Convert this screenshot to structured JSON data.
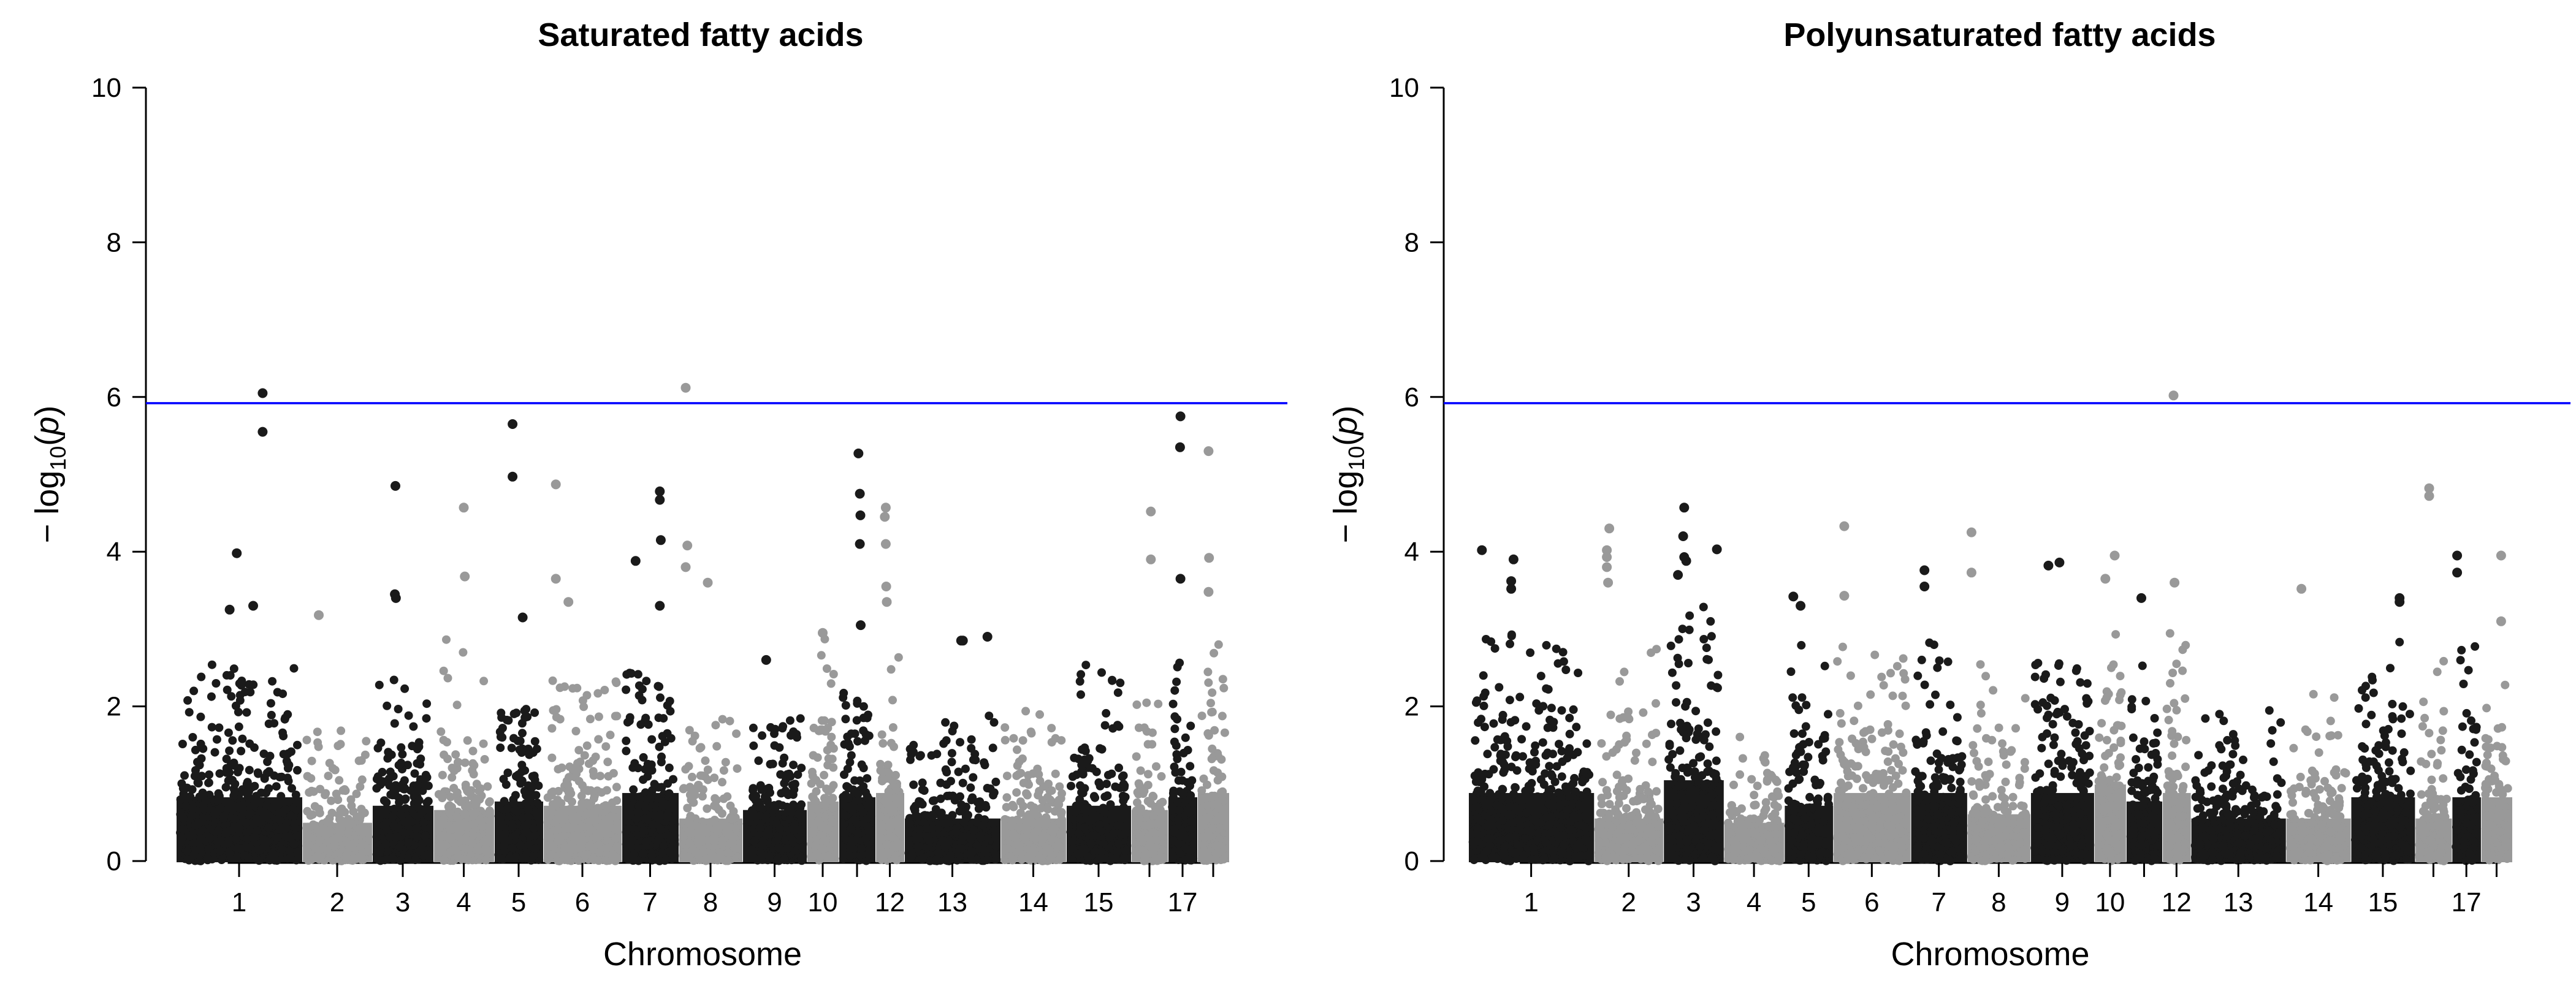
{
  "chart_data": [
    {
      "type": "scatter",
      "subtype": "manhattan",
      "title": "Saturated fatty acids",
      "xlabel": "Chromosome",
      "ylabel": "−log10(p)",
      "ylabel_parts": {
        "prefix": "− log",
        "subscript": "10",
        "open": "(",
        "var": "p",
        "close": ")"
      },
      "ylim": [
        0,
        10
      ],
      "yticks": [
        0,
        2,
        4,
        6,
        8,
        10
      ],
      "threshold": {
        "value": 5.92,
        "color": "#0000ff"
      },
      "colors": [
        "#1a1a1a",
        "#999999"
      ],
      "grid": false,
      "chromosomes": [
        {
          "chr": 1,
          "label": "1",
          "relative_length": 206,
          "bulk_max": 2.6,
          "dense_max": 1.5
        },
        {
          "chr": 2,
          "label": "2",
          "relative_length": 114,
          "bulk_max": 1.7,
          "dense_max": 0.9
        },
        {
          "chr": 3,
          "label": "3",
          "relative_length": 100,
          "bulk_max": 2.4,
          "dense_max": 1.3
        },
        {
          "chr": 4,
          "label": "4",
          "relative_length": 99,
          "bulk_max": 2.9,
          "dense_max": 1.2
        },
        {
          "chr": 5,
          "label": "5",
          "relative_length": 80,
          "bulk_max": 2.0,
          "dense_max": 1.4
        },
        {
          "chr": 6,
          "label": "6",
          "relative_length": 128,
          "bulk_max": 2.6,
          "dense_max": 1.3
        },
        {
          "chr": 7,
          "label": "7",
          "relative_length": 93,
          "bulk_max": 2.5,
          "dense_max": 1.6
        },
        {
          "chr": 8,
          "label": "8",
          "relative_length": 104,
          "bulk_max": 2.2,
          "dense_max": 1.0
        },
        {
          "chr": 9,
          "label": "9",
          "relative_length": 105,
          "bulk_max": 1.9,
          "dense_max": 1.2
        },
        {
          "chr": 10,
          "label": "10",
          "relative_length": 52,
          "bulk_max": 2.9,
          "dense_max": 1.4
        },
        {
          "chr": 11,
          "label": "",
          "relative_length": 60,
          "bulk_max": 2.2,
          "dense_max": 1.5
        },
        {
          "chr": 12,
          "label": "12",
          "relative_length": 47,
          "bulk_max": 2.7,
          "dense_max": 1.6
        },
        {
          "chr": 13,
          "label": "13",
          "relative_length": 157,
          "bulk_max": 1.9,
          "dense_max": 1.0
        },
        {
          "chr": 14,
          "label": "14",
          "relative_length": 107,
          "bulk_max": 2.0,
          "dense_max": 1.0
        },
        {
          "chr": 15,
          "label": "15",
          "relative_length": 106,
          "bulk_max": 2.6,
          "dense_max": 1.3
        },
        {
          "chr": 16,
          "label": "",
          "relative_length": 60,
          "bulk_max": 2.7,
          "dense_max": 1.2
        },
        {
          "chr": 17,
          "label": "17",
          "relative_length": 48,
          "bulk_max": 2.6,
          "dense_max": 1.5
        },
        {
          "chr": 18,
          "label": "",
          "relative_length": 52,
          "bulk_max": 2.9,
          "dense_max": 1.6
        }
      ],
      "top_hits": [
        {
          "chr": 1,
          "pos": 0.7,
          "y": 6.05
        },
        {
          "chr": 1,
          "pos": 0.7,
          "y": 5.55
        },
        {
          "chr": 1,
          "pos": 0.48,
          "y": 3.98
        },
        {
          "chr": 1,
          "pos": 0.62,
          "y": 3.3
        },
        {
          "chr": 1,
          "pos": 0.42,
          "y": 3.25
        },
        {
          "chr": 2,
          "pos": 0.2,
          "y": 3.18
        },
        {
          "chr": 3,
          "pos": 0.36,
          "y": 4.85
        },
        {
          "chr": 3,
          "pos": 0.35,
          "y": 3.45
        },
        {
          "chr": 3,
          "pos": 0.37,
          "y": 3.4
        },
        {
          "chr": 4,
          "pos": 0.5,
          "y": 4.57
        },
        {
          "chr": 4,
          "pos": 0.52,
          "y": 3.68
        },
        {
          "chr": 5,
          "pos": 0.35,
          "y": 5.65
        },
        {
          "chr": 5,
          "pos": 0.35,
          "y": 4.97
        },
        {
          "chr": 5,
          "pos": 0.6,
          "y": 3.15
        },
        {
          "chr": 6,
          "pos": 0.12,
          "y": 4.87
        },
        {
          "chr": 6,
          "pos": 0.12,
          "y": 3.65
        },
        {
          "chr": 6,
          "pos": 0.3,
          "y": 3.35
        },
        {
          "chr": 7,
          "pos": 0.2,
          "y": 3.88
        },
        {
          "chr": 7,
          "pos": 0.7,
          "y": 4.78
        },
        {
          "chr": 7,
          "pos": 0.7,
          "y": 4.67
        },
        {
          "chr": 7,
          "pos": 0.72,
          "y": 4.15
        },
        {
          "chr": 7,
          "pos": 0.7,
          "y": 3.3
        },
        {
          "chr": 8,
          "pos": 0.05,
          "y": 6.12
        },
        {
          "chr": 8,
          "pos": 0.08,
          "y": 4.08
        },
        {
          "chr": 8,
          "pos": 0.05,
          "y": 3.8
        },
        {
          "chr": 8,
          "pos": 0.45,
          "y": 3.6
        },
        {
          "chr": 9,
          "pos": 0.35,
          "y": 2.6
        },
        {
          "chr": 10,
          "pos": 0.5,
          "y": 2.95
        },
        {
          "chr": 11,
          "pos": 0.55,
          "y": 5.27
        },
        {
          "chr": 11,
          "pos": 0.6,
          "y": 4.75
        },
        {
          "chr": 11,
          "pos": 0.62,
          "y": 4.47
        },
        {
          "chr": 11,
          "pos": 0.6,
          "y": 4.1
        },
        {
          "chr": 11,
          "pos": 0.63,
          "y": 3.05
        },
        {
          "chr": 12,
          "pos": 0.3,
          "y": 4.57
        },
        {
          "chr": 12,
          "pos": 0.25,
          "y": 4.45
        },
        {
          "chr": 12,
          "pos": 0.3,
          "y": 4.1
        },
        {
          "chr": 12,
          "pos": 0.32,
          "y": 3.55
        },
        {
          "chr": 12,
          "pos": 0.35,
          "y": 3.35
        },
        {
          "chr": 13,
          "pos": 0.6,
          "y": 2.85
        },
        {
          "chr": 13,
          "pos": 0.62,
          "y": 2.85
        },
        {
          "chr": 13,
          "pos": 0.9,
          "y": 2.9
        },
        {
          "chr": 16,
          "pos": 0.55,
          "y": 4.52
        },
        {
          "chr": 16,
          "pos": 0.55,
          "y": 3.9
        },
        {
          "chr": 17,
          "pos": 0.4,
          "y": 5.75
        },
        {
          "chr": 17,
          "pos": 0.38,
          "y": 5.35
        },
        {
          "chr": 17,
          "pos": 0.4,
          "y": 3.65
        },
        {
          "chr": 18,
          "pos": 0.3,
          "y": 5.3
        },
        {
          "chr": 18,
          "pos": 0.32,
          "y": 3.92
        },
        {
          "chr": 18,
          "pos": 0.3,
          "y": 3.48
        }
      ]
    },
    {
      "type": "scatter",
      "subtype": "manhattan",
      "title": "Polyunsaturated fatty acids",
      "xlabel": "Chromosome",
      "ylabel": "−log10(p)",
      "ylabel_parts": {
        "prefix": "− log",
        "subscript": "10",
        "open": "(",
        "var": "p",
        "close": ")"
      },
      "ylim": [
        0,
        10
      ],
      "yticks": [
        0,
        2,
        4,
        6,
        8,
        10
      ],
      "threshold": {
        "value": 5.92,
        "color": "#0000ff"
      },
      "colors": [
        "#1a1a1a",
        "#999999"
      ],
      "grid": false,
      "chromosomes": [
        {
          "chr": 1,
          "label": "1",
          "relative_length": 229,
          "bulk_max": 3.0,
          "dense_max": 1.6
        },
        {
          "chr": 2,
          "label": "2",
          "relative_length": 126,
          "bulk_max": 3.2,
          "dense_max": 1.0
        },
        {
          "chr": 3,
          "label": "3",
          "relative_length": 110,
          "bulk_max": 3.3,
          "dense_max": 1.9
        },
        {
          "chr": 4,
          "label": "4",
          "relative_length": 110,
          "bulk_max": 2.3,
          "dense_max": 0.9
        },
        {
          "chr": 5,
          "label": "5",
          "relative_length": 89,
          "bulk_max": 2.9,
          "dense_max": 1.3
        },
        {
          "chr": 6,
          "label": "6",
          "relative_length": 141,
          "bulk_max": 2.8,
          "dense_max": 1.6
        },
        {
          "chr": 7,
          "label": "7",
          "relative_length": 103,
          "bulk_max": 3.0,
          "dense_max": 1.6
        },
        {
          "chr": 8,
          "label": "8",
          "relative_length": 115,
          "bulk_max": 3.0,
          "dense_max": 1.1
        },
        {
          "chr": 9,
          "label": "9",
          "relative_length": 116,
          "bulk_max": 2.6,
          "dense_max": 1.6
        },
        {
          "chr": 10,
          "label": "10",
          "relative_length": 58,
          "bulk_max": 3.3,
          "dense_max": 1.8
        },
        {
          "chr": 11,
          "label": "",
          "relative_length": 66,
          "bulk_max": 2.6,
          "dense_max": 1.4
        },
        {
          "chr": 12,
          "label": "12",
          "relative_length": 52,
          "bulk_max": 3.0,
          "dense_max": 1.6
        },
        {
          "chr": 13,
          "label": "13",
          "relative_length": 173,
          "bulk_max": 2.0,
          "dense_max": 1.0
        },
        {
          "chr": 14,
          "label": "14",
          "relative_length": 118,
          "bulk_max": 2.2,
          "dense_max": 1.0
        },
        {
          "chr": 15,
          "label": "15",
          "relative_length": 117,
          "bulk_max": 2.9,
          "dense_max": 1.5
        },
        {
          "chr": 16,
          "label": "",
          "relative_length": 67,
          "bulk_max": 2.8,
          "dense_max": 1.0
        },
        {
          "chr": 17,
          "label": "17",
          "relative_length": 53,
          "bulk_max": 2.8,
          "dense_max": 1.5
        },
        {
          "chr": 18,
          "label": "",
          "relative_length": 57,
          "bulk_max": 3.0,
          "dense_max": 1.5
        }
      ],
      "top_hits": [
        {
          "chr": 1,
          "pos": 0.08,
          "y": 4.02
        },
        {
          "chr": 1,
          "pos": 0.35,
          "y": 3.9
        },
        {
          "chr": 1,
          "pos": 0.33,
          "y": 3.62
        },
        {
          "chr": 1,
          "pos": 0.33,
          "y": 3.52
        },
        {
          "chr": 2,
          "pos": 0.18,
          "y": 4.3
        },
        {
          "chr": 2,
          "pos": 0.14,
          "y": 4.02
        },
        {
          "chr": 2,
          "pos": 0.14,
          "y": 3.93
        },
        {
          "chr": 2,
          "pos": 0.14,
          "y": 3.8
        },
        {
          "chr": 2,
          "pos": 0.16,
          "y": 3.6
        },
        {
          "chr": 3,
          "pos": 0.32,
          "y": 4.57
        },
        {
          "chr": 3,
          "pos": 0.3,
          "y": 4.2
        },
        {
          "chr": 3,
          "pos": 0.32,
          "y": 3.93
        },
        {
          "chr": 3,
          "pos": 0.36,
          "y": 3.88
        },
        {
          "chr": 3,
          "pos": 0.2,
          "y": 3.7
        },
        {
          "chr": 3,
          "pos": 0.95,
          "y": 4.03
        },
        {
          "chr": 5,
          "pos": 0.12,
          "y": 3.42
        },
        {
          "chr": 5,
          "pos": 0.3,
          "y": 3.3
        },
        {
          "chr": 6,
          "pos": 0.1,
          "y": 4.33
        },
        {
          "chr": 6,
          "pos": 0.1,
          "y": 3.43
        },
        {
          "chr": 7,
          "pos": 0.2,
          "y": 3.76
        },
        {
          "chr": 7,
          "pos": 0.2,
          "y": 3.55
        },
        {
          "chr": 8,
          "pos": 0.0,
          "y": 4.25
        },
        {
          "chr": 8,
          "pos": 0.0,
          "y": 3.73
        },
        {
          "chr": 9,
          "pos": 0.25,
          "y": 3.82
        },
        {
          "chr": 9,
          "pos": 0.45,
          "y": 3.86
        },
        {
          "chr": 10,
          "pos": 0.3,
          "y": 3.65
        },
        {
          "chr": 10,
          "pos": 0.7,
          "y": 3.95
        },
        {
          "chr": 11,
          "pos": 0.4,
          "y": 3.4
        },
        {
          "chr": 12,
          "pos": 0.35,
          "y": 6.02
        },
        {
          "chr": 12,
          "pos": 0.4,
          "y": 3.6
        },
        {
          "chr": 14,
          "pos": 0.2,
          "y": 3.52
        },
        {
          "chr": 15,
          "pos": 0.8,
          "y": 3.4
        },
        {
          "chr": 15,
          "pos": 0.8,
          "y": 3.35
        },
        {
          "chr": 16,
          "pos": 0.35,
          "y": 4.82
        },
        {
          "chr": 16,
          "pos": 0.35,
          "y": 4.72
        },
        {
          "chr": 17,
          "pos": 0.05,
          "y": 3.95
        },
        {
          "chr": 17,
          "pos": 0.05,
          "y": 3.73
        },
        {
          "chr": 18,
          "pos": 0.7,
          "y": 3.95
        },
        {
          "chr": 18,
          "pos": 0.7,
          "y": 3.1
        }
      ]
    }
  ]
}
